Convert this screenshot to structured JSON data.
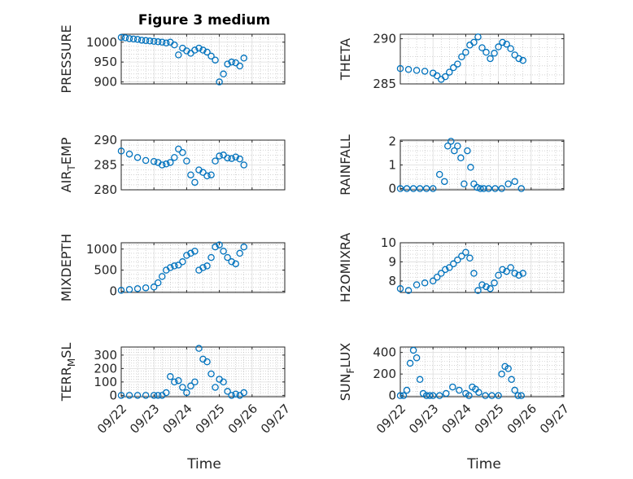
{
  "figure": {
    "title": "Figure 3 medium",
    "xlabel": "Time"
  },
  "chart_data": [
    {
      "id": "pressure",
      "type": "scatter",
      "title": "Figure 3 medium",
      "ylabel": "PRESSURE",
      "ylim": [
        895,
        1020
      ],
      "yticks": [
        "900",
        "950",
        "1000"
      ],
      "ytickvals": [
        900,
        950,
        1000
      ],
      "xticks": [
        "09/22",
        "09/23",
        "09/24",
        "09/25",
        "09/26",
        "09/27"
      ],
      "show_xticklabels": false,
      "grid": true,
      "minor_grid": true,
      "color": "#0072BD",
      "x": [
        0,
        0.125,
        0.25,
        0.375,
        0.5,
        0.625,
        0.75,
        0.875,
        1.0,
        1.125,
        1.25,
        1.375,
        1.5,
        1.625,
        1.75,
        1.875,
        2.0,
        2.125,
        2.25,
        2.375,
        2.5,
        2.625,
        2.75,
        2.875,
        3.0,
        3.125,
        3.25,
        3.375,
        3.5,
        3.625,
        3.75
      ],
      "y": [
        1012,
        1011,
        1009,
        1008,
        1007,
        1005,
        1004,
        1003,
        1002,
        1001,
        1000,
        998,
        1000,
        993,
        968,
        985,
        978,
        972,
        980,
        985,
        980,
        975,
        965,
        955,
        900,
        920,
        945,
        950,
        948,
        940,
        960
      ]
    },
    {
      "id": "theta",
      "type": "scatter",
      "ylabel": "THETA",
      "ylim": [
        285,
        290.5
      ],
      "yticks": [
        "285",
        "290"
      ],
      "ytickvals": [
        285,
        290
      ],
      "xticks": [
        "09/22",
        "09/23",
        "09/24",
        "09/25",
        "09/26",
        "09/27"
      ],
      "show_xticklabels": false,
      "grid": true,
      "minor_grid": true,
      "color": "#0072BD",
      "x": [
        0,
        0.25,
        0.5,
        0.75,
        1.0,
        1.125,
        1.25,
        1.375,
        1.5,
        1.625,
        1.75,
        1.875,
        2.0,
        2.125,
        2.25,
        2.375,
        2.5,
        2.625,
        2.75,
        2.875,
        3.0,
        3.125,
        3.25,
        3.375,
        3.5,
        3.625,
        3.75
      ],
      "y": [
        286.7,
        286.6,
        286.5,
        286.4,
        286.2,
        285.9,
        285.5,
        285.8,
        286.3,
        286.8,
        287.2,
        288,
        288.5,
        289.3,
        289.6,
        290.2,
        289,
        288.5,
        287.8,
        288.4,
        289.1,
        289.6,
        289.4,
        288.9,
        288.2,
        287.8,
        287.6
      ]
    },
    {
      "id": "airtemp",
      "type": "scatter",
      "ylabel": "AIR_TEMP",
      "ylabel_parts": [
        "AIR",
        "T",
        "EMP"
      ],
      "ylim": [
        280,
        290
      ],
      "yticks": [
        "280",
        "285",
        "290"
      ],
      "ytickvals": [
        280,
        285,
        290
      ],
      "xticks": [
        "09/22",
        "09/23",
        "09/24",
        "09/25",
        "09/26",
        "09/27"
      ],
      "show_xticklabels": false,
      "grid": true,
      "minor_grid": true,
      "color": "#0072BD",
      "x": [
        0,
        0.25,
        0.5,
        0.75,
        1.0,
        1.125,
        1.25,
        1.375,
        1.5,
        1.625,
        1.75,
        1.875,
        2.0,
        2.125,
        2.25,
        2.375,
        2.5,
        2.625,
        2.75,
        2.875,
        3.0,
        3.125,
        3.25,
        3.375,
        3.5,
        3.625,
        3.75
      ],
      "y": [
        287.8,
        287.2,
        286.5,
        285.9,
        285.7,
        285.5,
        285,
        285.2,
        285.5,
        286.5,
        288.2,
        287.5,
        285.8,
        283,
        281.5,
        284,
        283.5,
        282.8,
        283,
        285.8,
        286.8,
        287,
        286.4,
        286.3,
        286.6,
        286.2,
        285
      ]
    },
    {
      "id": "rainfall",
      "type": "scatter",
      "ylabel": "RAINFALL",
      "ylim": [
        -0.05,
        2.05
      ],
      "yticks": [
        "0",
        "1",
        "2"
      ],
      "ytickvals": [
        0,
        1,
        2
      ],
      "xticks": [
        "09/22",
        "09/23",
        "09/24",
        "09/25",
        "09/26",
        "09/27"
      ],
      "show_xticklabels": false,
      "grid": true,
      "minor_grid": true,
      "color": "#0072BD",
      "x": [
        0,
        0.2,
        0.4,
        0.6,
        0.8,
        1.0,
        1.2,
        1.35,
        1.45,
        1.55,
        1.65,
        1.75,
        1.85,
        1.95,
        2.05,
        2.15,
        2.25,
        2.35,
        2.45,
        2.55,
        2.7,
        2.9,
        3.1,
        3.3,
        3.5,
        3.7
      ],
      "y": [
        0,
        0,
        0,
        0,
        0,
        0,
        0.6,
        0.3,
        1.8,
        2,
        1.6,
        1.8,
        1.3,
        0.2,
        1.6,
        0.9,
        0.2,
        0.05,
        0,
        0,
        0,
        0,
        0,
        0.2,
        0.3,
        0
      ]
    },
    {
      "id": "mixdepth",
      "type": "scatter",
      "ylabel": "MIXDEPTH",
      "ylim": [
        -30,
        1150
      ],
      "yticks": [
        "0",
        "500",
        "1000"
      ],
      "ytickvals": [
        0,
        500,
        1000
      ],
      "xticks": [
        "09/22",
        "09/23",
        "09/24",
        "09/25",
        "09/26",
        "09/27"
      ],
      "show_xticklabels": false,
      "grid": true,
      "minor_grid": true,
      "color": "#0072BD",
      "x": [
        0,
        0.25,
        0.5,
        0.75,
        1.0,
        1.125,
        1.25,
        1.375,
        1.5,
        1.625,
        1.75,
        1.875,
        2.0,
        2.125,
        2.25,
        2.375,
        2.5,
        2.625,
        2.75,
        2.875,
        3.0,
        3.125,
        3.25,
        3.375,
        3.5,
        3.625,
        3.75
      ],
      "y": [
        20,
        40,
        60,
        80,
        100,
        200,
        350,
        500,
        560,
        600,
        620,
        700,
        850,
        900,
        950,
        500,
        560,
        600,
        800,
        1050,
        1100,
        950,
        800,
        700,
        650,
        900,
        1050
      ]
    },
    {
      "id": "h2omixra",
      "type": "scatter",
      "ylabel": "H2OMIXRA",
      "ylim": [
        7.4,
        10
      ],
      "yticks": [
        "8",
        "9",
        "10"
      ],
      "ytickvals": [
        8,
        9,
        10
      ],
      "xticks": [
        "09/22",
        "09/23",
        "09/24",
        "09/25",
        "09/26",
        "09/27"
      ],
      "show_xticklabels": false,
      "grid": true,
      "minor_grid": true,
      "color": "#0072BD",
      "x": [
        0,
        0.25,
        0.5,
        0.75,
        1.0,
        1.125,
        1.25,
        1.375,
        1.5,
        1.625,
        1.75,
        1.875,
        2.0,
        2.125,
        2.25,
        2.375,
        2.5,
        2.625,
        2.75,
        2.875,
        3.0,
        3.125,
        3.25,
        3.375,
        3.5,
        3.625,
        3.75
      ],
      "y": [
        7.6,
        7.5,
        7.8,
        7.9,
        8,
        8.2,
        8.4,
        8.6,
        8.7,
        8.9,
        9.1,
        9.3,
        9.5,
        9.2,
        8.4,
        7.5,
        7.8,
        7.7,
        7.6,
        7.9,
        8.3,
        8.6,
        8.5,
        8.7,
        8.4,
        8.3,
        8.4
      ]
    },
    {
      "id": "terrmsl",
      "type": "scatter",
      "ylabel": "TERR_MSL",
      "ylabel_parts": [
        "TERR",
        "M",
        "SL"
      ],
      "ylim": [
        -10,
        360
      ],
      "yticks": [
        "0",
        "100",
        "200",
        "300"
      ],
      "ytickvals": [
        0,
        100,
        200,
        300
      ],
      "xticks": [
        "09/22",
        "09/23",
        "09/24",
        "09/25",
        "09/26",
        "09/27"
      ],
      "show_xticklabels": true,
      "grid": true,
      "minor_grid": true,
      "color": "#0072BD",
      "x": [
        0,
        0.25,
        0.5,
        0.75,
        1.0,
        1.125,
        1.25,
        1.375,
        1.5,
        1.625,
        1.75,
        1.875,
        2.0,
        2.125,
        2.25,
        2.375,
        2.5,
        2.625,
        2.75,
        2.875,
        3.0,
        3.125,
        3.25,
        3.375,
        3.5,
        3.625,
        3.75
      ],
      "y": [
        0,
        0,
        0,
        0,
        0,
        0,
        0,
        20,
        140,
        100,
        110,
        60,
        20,
        70,
        100,
        350,
        270,
        250,
        160,
        60,
        120,
        100,
        30,
        0,
        10,
        0,
        20
      ]
    },
    {
      "id": "sunflux",
      "type": "scatter",
      "ylabel": "SUN_FLUX",
      "ylabel_parts": [
        "SUN",
        "F",
        "LUX"
      ],
      "ylim": [
        -10,
        450
      ],
      "yticks": [
        "0",
        "200",
        "400"
      ],
      "ytickvals": [
        0,
        200,
        400
      ],
      "xticks": [
        "09/22",
        "09/23",
        "09/24",
        "09/25",
        "09/26",
        "09/27"
      ],
      "show_xticklabels": true,
      "grid": true,
      "minor_grid": true,
      "color": "#0072BD",
      "x": [
        0,
        0.1,
        0.2,
        0.3,
        0.4,
        0.5,
        0.6,
        0.7,
        0.8,
        0.9,
        1.0,
        1.2,
        1.4,
        1.6,
        1.8,
        2.0,
        2.1,
        2.2,
        2.3,
        2.4,
        2.6,
        2.8,
        3.0,
        3.1,
        3.2,
        3.3,
        3.4,
        3.5,
        3.6,
        3.7
      ],
      "y": [
        0,
        0,
        50,
        300,
        420,
        350,
        150,
        20,
        0,
        0,
        0,
        0,
        20,
        80,
        50,
        20,
        0,
        80,
        60,
        30,
        0,
        0,
        0,
        200,
        270,
        250,
        150,
        50,
        0,
        0
      ]
    }
  ]
}
